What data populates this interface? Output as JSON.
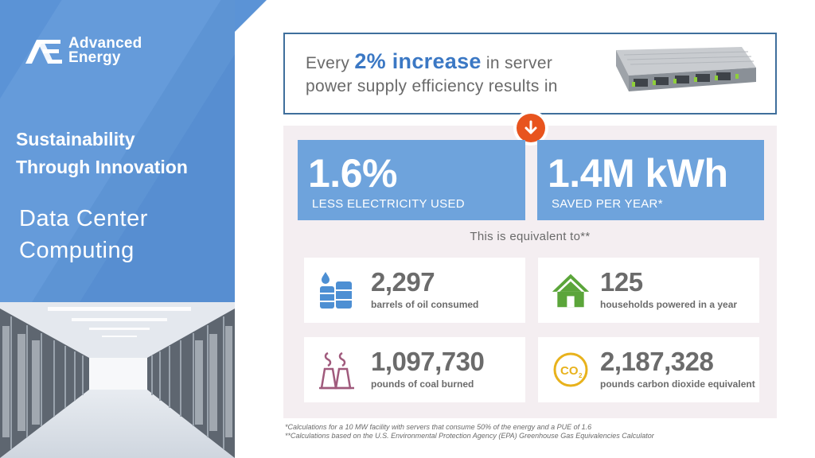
{
  "brand": {
    "logo_line1": "Advanced",
    "logo_line2": "Energy",
    "logo_mark_color": "#ffffff",
    "panel_color": "#5b93d6"
  },
  "left": {
    "title_line1": "Sustainability",
    "title_line2": "Through Innovation",
    "subtitle_line1": "Data Center",
    "subtitle_line2": "Computing",
    "image_icon": "data-center-aisle"
  },
  "header": {
    "prefix": "Every ",
    "highlight": "2% increase",
    "suffix": " in server",
    "line2": "power supply efficiency results in",
    "image_icon": "server-power-supply",
    "accent_color": "#3b78c4"
  },
  "arrow": {
    "icon": "arrow-down-icon",
    "color": "#e8541e"
  },
  "stats": [
    {
      "value": "1.6%",
      "label": "LESS ELECTRICITY USED"
    },
    {
      "value": "1.4M kWh",
      "label": "SAVED PER YEAR*"
    }
  ],
  "equivalent_text": "This is equivalent to**",
  "equivalents": [
    {
      "value": "2,297",
      "label": "barrels of oil consumed",
      "icon": "oil-barrel-icon",
      "color": "#4d8fd3"
    },
    {
      "value": "125",
      "label": "households powered in a year",
      "icon": "house-icon",
      "color": "#5ba53a"
    },
    {
      "value": "1,097,730",
      "label": "pounds of coal burned",
      "icon": "power-plant-icon",
      "color": "#a05a7c"
    },
    {
      "value": "2,187,328",
      "label": "pounds carbon dioxide equivalent",
      "icon": "co2-icon",
      "color": "#e8b21c"
    }
  ],
  "footnotes": [
    "*Calculations for a 10 MW facility with servers that consume 50% of the energy and a PUE of 1.6",
    "**Calculations based on the U.S. Environmental Protection Agency (EPA) Greenhouse Gas Equivalencies Calculator"
  ]
}
